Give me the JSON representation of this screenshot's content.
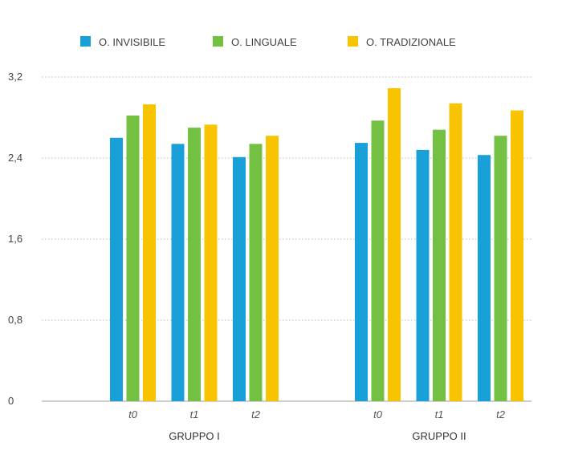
{
  "chart_data": {
    "type": "bar",
    "title": "",
    "xlabel": "",
    "ylabel": "",
    "ylim": [
      0,
      3.2
    ],
    "y_ticks": [
      0,
      0.8,
      1.6,
      2.4,
      3.2
    ],
    "y_tick_labels": [
      "0",
      "0,8",
      "1,6",
      "2,4",
      "3,2"
    ],
    "grid": true,
    "legend_position": "top",
    "groups": [
      {
        "label": "GRUPPO I",
        "categories": [
          "t0",
          "t1",
          "t2"
        ],
        "series": [
          {
            "name": "O. INVISIBILE",
            "values": [
              2.6,
              2.54,
              2.41
            ]
          },
          {
            "name": "O. LINGUALE",
            "values": [
              2.82,
              2.7,
              2.54
            ]
          },
          {
            "name": "O. TRADIZIONALE",
            "values": [
              2.93,
              2.73,
              2.62
            ]
          }
        ]
      },
      {
        "label": "GRUPPO II",
        "categories": [
          "t0",
          "t1",
          "t2"
        ],
        "series": [
          {
            "name": "O. INVISIBILE",
            "values": [
              2.55,
              2.48,
              2.43
            ]
          },
          {
            "name": "O. LINGUALE",
            "values": [
              2.77,
              2.68,
              2.62
            ]
          },
          {
            "name": "O. TRADIZIONALE",
            "values": [
              3.09,
              2.94,
              2.87
            ]
          }
        ]
      }
    ],
    "colors": [
      "#1aa0d8",
      "#74c043",
      "#f8c400"
    ]
  }
}
